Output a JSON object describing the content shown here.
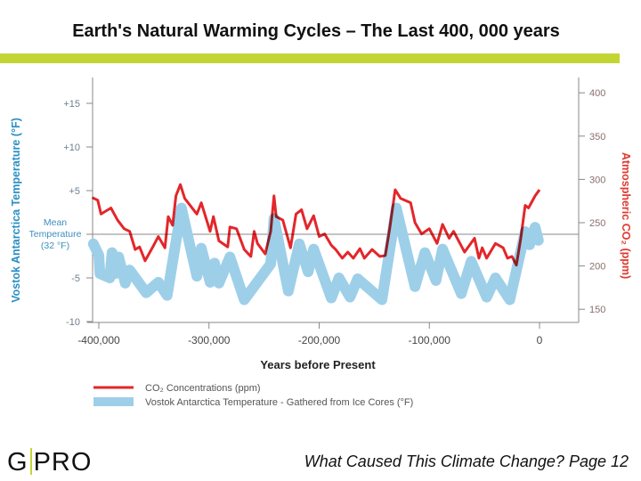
{
  "slide": {
    "title": "Earth's Natural Warming Cycles – The Last 400, 000 years",
    "footer_text": "What Caused This Climate Change? Page 12",
    "logo_left": "G",
    "logo_right": "PRO",
    "accent_color": "#c3d534"
  },
  "chart_data": {
    "type": "line",
    "title": "",
    "xlabel": "Years before Present",
    "ylabel_left": "Vostok Antarctica Temperature (°F)",
    "ylabel_right": "Atmospheric CO₂ (ppm)",
    "xlim": [
      -405000,
      0
    ],
    "ylim_left": [
      -10,
      15
    ],
    "ylim_right": [
      150,
      400
    ],
    "x_ticks": [
      {
        "value": -400000,
        "label": "-400,000"
      },
      {
        "value": -300000,
        "label": "-300,000"
      },
      {
        "value": -200000,
        "label": "-200,000"
      },
      {
        "value": -100000,
        "label": "-100,000"
      },
      {
        "value": 0,
        "label": "0"
      }
    ],
    "left_ticks": [
      {
        "value": 15,
        "label": "+15"
      },
      {
        "value": 10,
        "label": "+10"
      },
      {
        "value": 5,
        "label": "+5"
      },
      {
        "value": -5,
        "label": "-5"
      },
      {
        "value": -10,
        "label": "-10"
      }
    ],
    "mean_label": [
      "Mean",
      "Temperature",
      "(32 °F)"
    ],
    "right_ticks": [
      {
        "value": 400,
        "label": "400"
      },
      {
        "value": 350,
        "label": "350"
      },
      {
        "value": 300,
        "label": "300"
      },
      {
        "value": 250,
        "label": "250"
      },
      {
        "value": 200,
        "label": "200"
      },
      {
        "value": 150,
        "label": "150"
      }
    ],
    "grid": false,
    "legend_position": "bottom-left",
    "series": [
      {
        "name": "CO₂ Concentrations (ppm)",
        "axis": "right",
        "color": "#e3262a",
        "x": [
          -406000,
          -401000,
          -398000,
          -389000,
          -383000,
          -377000,
          -372000,
          -367000,
          -363000,
          -358000,
          -351000,
          -346000,
          -340000,
          -337000,
          -333000,
          -330000,
          -326000,
          -322000,
          -311000,
          -307000,
          -299000,
          -296000,
          -291000,
          -283000,
          -281000,
          -275000,
          -268000,
          -262000,
          -259000,
          -256000,
          -249000,
          -244000,
          -241000,
          -239000,
          -233000,
          -226000,
          -221000,
          -216000,
          -211000,
          -205000,
          -200000,
          -195000,
          -189000,
          -185000,
          -179000,
          -174000,
          -169000,
          -163000,
          -159000,
          -152000,
          -145000,
          -140000,
          -136000,
          -131000,
          -126000,
          -117000,
          -113000,
          -107000,
          -100000,
          -93000,
          -88000,
          -82000,
          -78000,
          -68000,
          -59000,
          -55000,
          -52000,
          -48000,
          -40000,
          -33000,
          -29000,
          -25000,
          -21000,
          -17000,
          -13000,
          -10000,
          -4000,
          0
        ],
        "y": [
          279,
          276,
          260,
          267,
          253,
          243,
          240,
          219,
          222,
          206,
          222,
          234,
          221,
          257,
          247,
          281,
          294,
          278,
          260,
          273,
          240,
          257,
          229,
          222,
          245,
          243,
          219,
          211,
          240,
          226,
          214,
          240,
          281,
          257,
          253,
          221,
          260,
          265,
          243,
          258,
          234,
          237,
          224,
          219,
          209,
          216,
          209,
          220,
          209,
          219,
          211,
          212,
          243,
          288,
          278,
          273,
          250,
          237,
          243,
          226,
          248,
          232,
          240,
          216,
          232,
          209,
          221,
          209,
          226,
          221,
          209,
          211,
          201,
          232,
          270,
          267,
          281,
          288
        ]
      },
      {
        "name": "Vostok Antarctica Temperature - Gathered from Ice Cores (°F)",
        "axis": "left",
        "color": "#9dcfe9",
        "x": [
          -405000,
          -400000,
          -399000,
          -390000,
          -388000,
          -385000,
          -382000,
          -376000,
          -372000,
          -357000,
          -346000,
          -338000,
          -325000,
          -311000,
          -307000,
          -299000,
          -295000,
          -291000,
          -281000,
          -268000,
          -244000,
          -241000,
          -228000,
          -218000,
          -210000,
          -205000,
          -189000,
          -182000,
          -172000,
          -165000,
          -143000,
          -130000,
          -113000,
          -104000,
          -94000,
          -88000,
          -71000,
          -62000,
          -48000,
          -40000,
          -27000,
          -13000,
          -9000,
          -4000,
          -1000
        ],
        "y": [
          -1.1,
          -2.4,
          -4.5,
          -5.0,
          -2.1,
          -4.5,
          -2.6,
          -5.6,
          -4.1,
          -6.7,
          -5.5,
          -7.0,
          3.0,
          -4.8,
          -1.6,
          -5.5,
          -3.3,
          -5.6,
          -2.6,
          -7.5,
          -3.4,
          1.8,
          -6.5,
          -1.1,
          -4.3,
          -1.7,
          -7.3,
          -5.0,
          -7.2,
          -5.1,
          -7.5,
          3.0,
          -6.0,
          -2.1,
          -5.3,
          -1.7,
          -6.8,
          -3.1,
          -7.2,
          -5.0,
          -7.5,
          0.3,
          -1.2,
          0.8,
          -0.7
        ]
      }
    ]
  }
}
